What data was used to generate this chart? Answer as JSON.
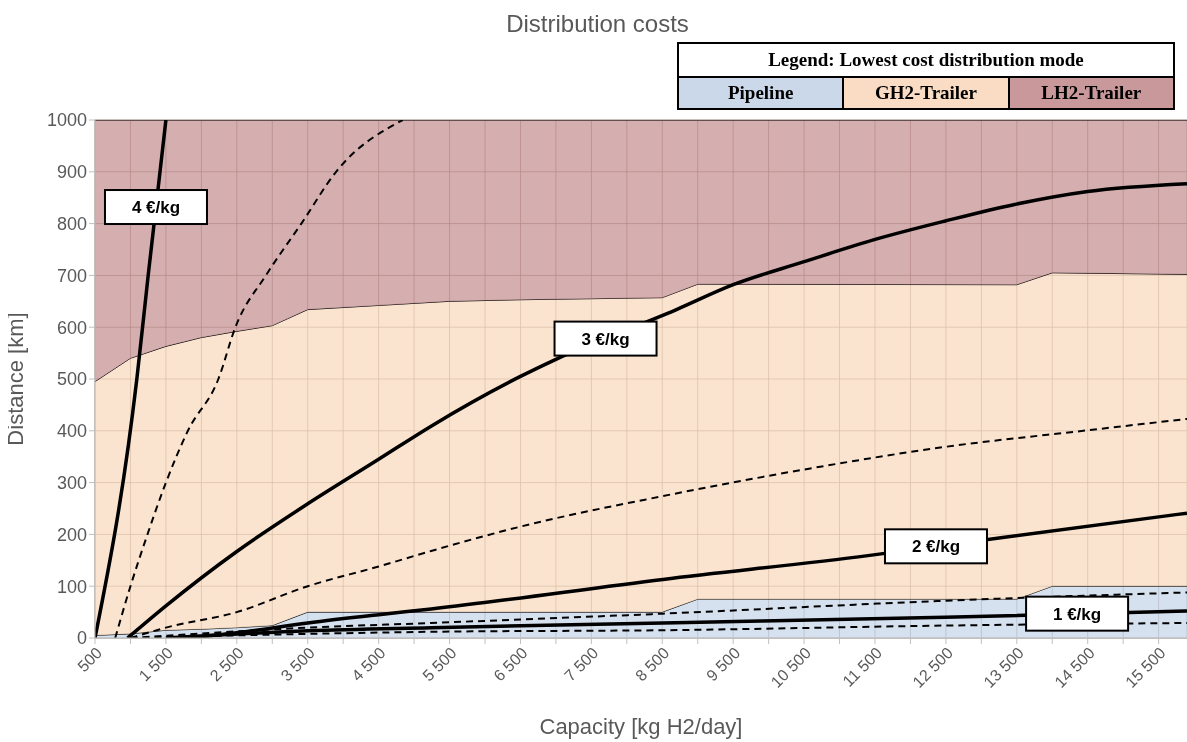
{
  "chart_data": {
    "type": "area",
    "title": "Distribution costs",
    "xlabel": "Capacity [kg H2/day]",
    "ylabel": "Distance [km]",
    "legend_title": "Legend: Lowest cost distribution mode",
    "legend": "top right",
    "stacked": true,
    "grid": true,
    "marker": "none",
    "x": [
      500,
      1000,
      1500,
      2000,
      2500,
      3000,
      3500,
      4500,
      5500,
      6500,
      7500,
      8500,
      9000,
      13500,
      14000,
      15900
    ],
    "series": [
      {
        "name": "Pipeline",
        "color": "#cbd8ea",
        "values": [
          5,
          8,
          15,
          17,
          20,
          24,
          50,
          50,
          50,
          50,
          50,
          50,
          75,
          75,
          100,
          100
        ]
      },
      {
        "name": "GH2-Trailer",
        "color": "#f9dcc3",
        "values": [
          490,
          532,
          548,
          563,
          572,
          579,
          584,
          592,
          600,
          603,
          605,
          607,
          608,
          607,
          605,
          602
        ]
      },
      {
        "name": "LH2-Trailer",
        "color": "#c9989a",
        "values": [
          505,
          460,
          437,
          420,
          408,
          397,
          366,
          358,
          350,
          347,
          345,
          343,
          317,
          318,
          295,
          298
        ]
      },
      {
        "type": "line",
        "color": "#000000",
        "line_style": "solid",
        "x": [
          500,
          1090,
          1250,
          1500
        ],
        "values": [
          0,
          500,
          700,
          1000
        ]
      },
      {
        "type": "line",
        "color": "#000000",
        "line_style": "dashed",
        "x": [
          785,
          1000,
          1240,
          1500,
          1810,
          2240,
          2480,
          2910,
          3410,
          3900,
          4840
        ],
        "values": [
          0,
          100,
          200,
          300,
          400,
          500,
          600,
          700,
          800,
          900,
          1000
        ]
      },
      {
        "type": "line",
        "color": "#000000",
        "line_style": "solid",
        "x": [
          960,
          1500,
          2500,
          3500,
          4500,
          5240,
          6500,
          7000,
          8700,
          9500,
          10490,
          11490,
          12490,
          13470,
          14500,
          15900
        ],
        "values": [
          0,
          62,
          167,
          259,
          345,
          409,
          505,
          538,
          634,
          682,
          726,
          769,
          805,
          837,
          862,
          877
        ]
      },
      {
        "type": "line",
        "color": "#000000",
        "line_style": "dashed",
        "x": [
          1000,
          1500,
          2500,
          3500,
          4500,
          5240,
          6500,
          8510,
          10490,
          12490,
          14500,
          15900
        ],
        "values": [
          0,
          20,
          50,
          100,
          138,
          168,
          215,
          274,
          325,
          369,
          401,
          423
        ]
      },
      {
        "type": "line",
        "color": "#000000",
        "line_style": "solid",
        "x": [
          1800,
          2500,
          3500,
          4500,
          5240,
          8510,
          11400,
          13300,
          15900
        ],
        "values": [
          0,
          10,
          29,
          45,
          56,
          113,
          159,
          194,
          241
        ]
      },
      {
        "type": "line",
        "color": "#000000",
        "line_style": "dashed",
        "x": [
          1000,
          3500,
          5240,
          8510,
          12490,
          15900
        ],
        "values": [
          0,
          20,
          29,
          47,
          72,
          88
        ]
      },
      {
        "type": "line",
        "color": "#000000",
        "line_style": "solid",
        "x": [
          1500,
          3500,
          5240,
          8510,
          12490,
          15900
        ],
        "values": [
          0,
          14,
          20,
          29,
          40,
          52
        ]
      },
      {
        "type": "line",
        "color": "#000000",
        "line_style": "dashed",
        "x": [
          1000,
          3500,
          5240,
          8510,
          12490,
          15900
        ],
        "values": [
          0,
          8,
          12,
          15,
          24,
          29
        ]
      }
    ],
    "annotations": [
      {
        "text": "4 €/kg",
        "x": 1360,
        "y": 832
      },
      {
        "text": "3 €/kg",
        "x": 7700,
        "y": 578
      },
      {
        "text": "2 €/kg",
        "x": 12360,
        "y": 177
      },
      {
        "text": "1 €/kg",
        "x": 14350,
        "y": 47
      }
    ],
    "xlim": [
      500,
      15900
    ],
    "xticks": [
      500,
      {
        "value": 1000,
        "label": null
      },
      {
        "value": 1500,
        "label": "1 500"
      },
      {
        "value": 2000,
        "label": null
      },
      {
        "value": 2500,
        "label": "2 500"
      },
      {
        "value": 3000,
        "label": null
      },
      {
        "value": 3500,
        "label": "3 500"
      },
      {
        "value": 4000,
        "label": null
      },
      {
        "value": 4500,
        "label": "4 500"
      },
      {
        "value": 5000,
        "label": null
      },
      {
        "value": 5500,
        "label": "5 500"
      },
      {
        "value": 6000,
        "label": null
      },
      {
        "value": 6500,
        "label": "6 500"
      },
      {
        "value": 7000,
        "label": null
      },
      {
        "value": 7500,
        "label": "7 500"
      },
      {
        "value": 8000,
        "label": null
      },
      {
        "value": 8500,
        "label": "8 500"
      },
      {
        "value": 9000,
        "label": null
      },
      {
        "value": 9500,
        "label": "9 500"
      },
      {
        "value": 10000,
        "label": null
      },
      {
        "value": 10500,
        "label": "10 500"
      },
      {
        "value": 11000,
        "label": null
      },
      {
        "value": 11500,
        "label": "11 500"
      },
      {
        "value": 12000,
        "label": null
      },
      {
        "value": 12500,
        "label": "12 500"
      },
      {
        "value": 13000,
        "label": null
      },
      {
        "value": 13500,
        "label": "13 500"
      },
      {
        "value": 14000,
        "label": null
      },
      {
        "value": 14500,
        "label": "14 500"
      },
      {
        "value": 15000,
        "label": null
      },
      {
        "value": 15500,
        "label": "15 500"
      }
    ],
    "ylim": [
      0,
      1000
    ],
    "yticks": [
      0,
      100,
      200,
      300,
      400,
      500,
      600,
      700,
      800,
      900,
      1000
    ]
  }
}
